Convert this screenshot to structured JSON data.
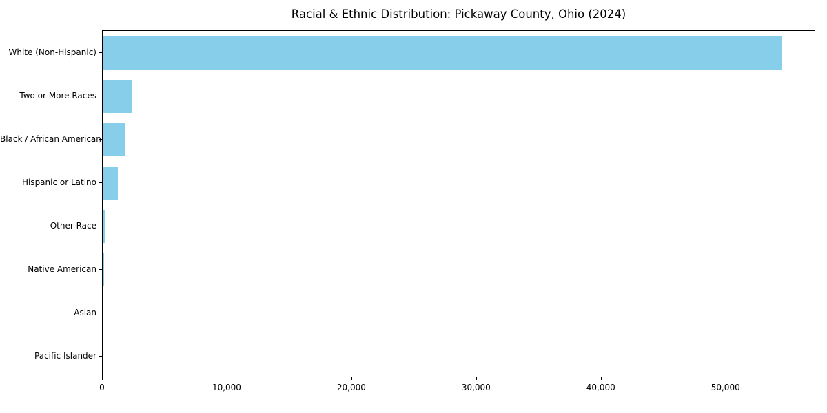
{
  "chart_data": {
    "type": "bar",
    "orientation": "horizontal",
    "title": "Racial & Ethnic Distribution: Pickaway County, Ohio (2024)",
    "categories": [
      "White (Non-Hispanic)",
      "Two or More Races",
      "Black / African American",
      "Hispanic or Latino",
      "Other Race",
      "Native American",
      "Asian",
      "Pacific Islander"
    ],
    "values": [
      54500,
      2400,
      1800,
      1200,
      200,
      100,
      50,
      20
    ],
    "xlabel": "",
    "ylabel": "",
    "xlim": [
      0,
      57200
    ],
    "x_ticks": [
      0,
      10000,
      20000,
      30000,
      40000,
      50000
    ],
    "x_tick_labels": [
      "0",
      "10,000",
      "20,000",
      "30,000",
      "40,000",
      "50,000"
    ],
    "bar_color": "#87CEEB",
    "background_color": "#ffffff",
    "grid": false,
    "legend": null
  }
}
